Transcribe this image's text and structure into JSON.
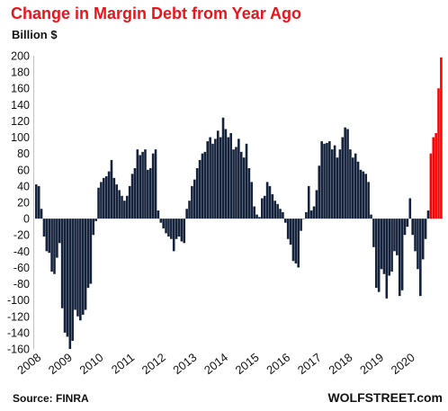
{
  "chart_data": {
    "type": "bar",
    "title": "Change in Margin Debt from Year Ago",
    "subtitle": "Billion $",
    "source": "Source: FINRA",
    "watermark": "WOLFSTREET.com",
    "ylim": [
      -160,
      200
    ],
    "yticks": [
      200,
      180,
      160,
      140,
      120,
      100,
      80,
      60,
      40,
      20,
      0,
      -20,
      -40,
      -60,
      -80,
      -100,
      -120,
      -140,
      -160
    ],
    "xticks": [
      "2008",
      "2009",
      "2010",
      "2011",
      "2012",
      "2013",
      "2014",
      "2015",
      "2016",
      "2017",
      "2018",
      "2019",
      "2020"
    ],
    "grid": false,
    "bar_color": "#14223c",
    "highlight": {
      "from": "2020-09",
      "color": "#ff0000"
    },
    "title_color": "#e8151b",
    "x": [
      "2008-01",
      "2008-02",
      "2008-03",
      "2008-04",
      "2008-05",
      "2008-06",
      "2008-07",
      "2008-08",
      "2008-09",
      "2008-10",
      "2008-11",
      "2008-12",
      "2009-01",
      "2009-02",
      "2009-03",
      "2009-04",
      "2009-05",
      "2009-06",
      "2009-07",
      "2009-08",
      "2009-09",
      "2009-10",
      "2009-11",
      "2009-12",
      "2010-01",
      "2010-02",
      "2010-03",
      "2010-04",
      "2010-05",
      "2010-06",
      "2010-07",
      "2010-08",
      "2010-09",
      "2010-10",
      "2010-11",
      "2010-12",
      "2011-01",
      "2011-02",
      "2011-03",
      "2011-04",
      "2011-05",
      "2011-06",
      "2011-07",
      "2011-08",
      "2011-09",
      "2011-10",
      "2011-11",
      "2011-12",
      "2012-01",
      "2012-02",
      "2012-03",
      "2012-04",
      "2012-05",
      "2012-06",
      "2012-07",
      "2012-08",
      "2012-09",
      "2012-10",
      "2012-11",
      "2012-12",
      "2013-01",
      "2013-02",
      "2013-03",
      "2013-04",
      "2013-05",
      "2013-06",
      "2013-07",
      "2013-08",
      "2013-09",
      "2013-10",
      "2013-11",
      "2013-12",
      "2014-01",
      "2014-02",
      "2014-03",
      "2014-04",
      "2014-05",
      "2014-06",
      "2014-07",
      "2014-08",
      "2014-09",
      "2014-10",
      "2014-11",
      "2014-12",
      "2015-01",
      "2015-02",
      "2015-03",
      "2015-04",
      "2015-05",
      "2015-06",
      "2015-07",
      "2015-08",
      "2015-09",
      "2015-10",
      "2015-11",
      "2015-12",
      "2016-01",
      "2016-02",
      "2016-03",
      "2016-04",
      "2016-05",
      "2016-06",
      "2016-07",
      "2016-08",
      "2016-09",
      "2016-10",
      "2016-11",
      "2016-12",
      "2017-01",
      "2017-02",
      "2017-03",
      "2017-04",
      "2017-05",
      "2017-06",
      "2017-07",
      "2017-08",
      "2017-09",
      "2017-10",
      "2017-11",
      "2017-12",
      "2018-01",
      "2018-02",
      "2018-03",
      "2018-04",
      "2018-05",
      "2018-06",
      "2018-07",
      "2018-08",
      "2018-09",
      "2018-10",
      "2018-11",
      "2018-12",
      "2019-01",
      "2019-02",
      "2019-03",
      "2019-04",
      "2019-05",
      "2019-06",
      "2019-07",
      "2019-08",
      "2019-09",
      "2019-10",
      "2019-11",
      "2019-12",
      "2020-01",
      "2020-02",
      "2020-03",
      "2020-04",
      "2020-05",
      "2020-06",
      "2020-07",
      "2020-08",
      "2020-09",
      "2020-10",
      "2020-11",
      "2020-12",
      "2021-01"
    ],
    "values": [
      42,
      40,
      12,
      -22,
      -40,
      -42,
      -65,
      -68,
      -48,
      -30,
      -110,
      -140,
      -145,
      -160,
      -150,
      -112,
      -120,
      -125,
      -118,
      -112,
      -85,
      -80,
      -20,
      -3,
      38,
      45,
      50,
      52,
      58,
      72,
      50,
      42,
      35,
      28,
      22,
      28,
      40,
      55,
      62,
      85,
      78,
      82,
      85,
      60,
      62,
      80,
      85,
      10,
      -5,
      -12,
      -18,
      -22,
      -25,
      -40,
      -25,
      -22,
      -28,
      -30,
      12,
      22,
      40,
      48,
      62,
      72,
      80,
      82,
      95,
      100,
      92,
      98,
      108,
      100,
      124,
      110,
      100,
      105,
      85,
      88,
      98,
      82,
      75,
      92,
      62,
      45,
      15,
      5,
      2,
      25,
      28,
      45,
      40,
      30,
      22,
      18,
      12,
      8,
      -5,
      -25,
      -32,
      -52,
      -55,
      -60,
      -15,
      0,
      8,
      40,
      10,
      15,
      35,
      65,
      95,
      92,
      93,
      95,
      85,
      90,
      75,
      85,
      100,
      112,
      110,
      85,
      75,
      80,
      70,
      60,
      58,
      55,
      45,
      5,
      -35,
      -85,
      -90,
      -62,
      -68,
      -98,
      -70,
      -65,
      -40,
      -45,
      -95,
      -88,
      -20,
      -10,
      25,
      -20,
      -40,
      -62,
      -95,
      -50,
      -25,
      10,
      80,
      100,
      105,
      160,
      198
    ]
  }
}
